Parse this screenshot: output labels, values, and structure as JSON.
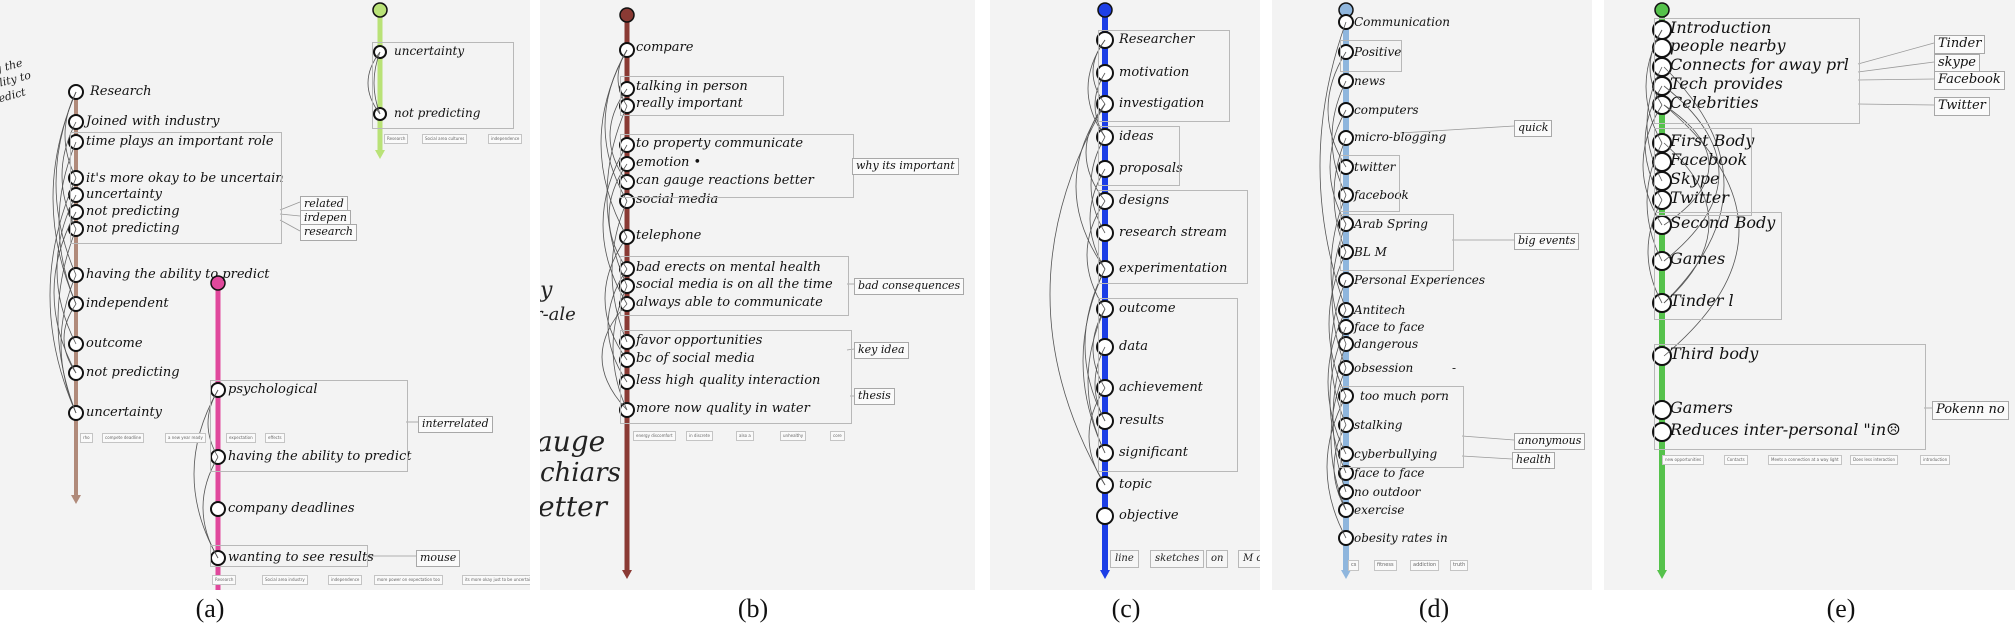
{
  "figure": {
    "captions": [
      "(a)",
      "(b)",
      "(c)",
      "(d)",
      "(e)"
    ],
    "colors": {
      "a_main": "#b08a7a",
      "a_green": "#b9e277",
      "a_pink": "#e0489c",
      "b": "#8a3a34",
      "c": "#1c3ee6",
      "d": "#8fb6dd",
      "e": "#55c24b"
    }
  },
  "panel_a": {
    "handwriting": "ring the ability to predict",
    "main": {
      "labels": [
        "Research",
        "Joined with industry",
        "time plays an important role",
        "it's more okay to be uncertain",
        "uncertainty",
        "not predicting",
        "not predicting",
        "having the ability to predict",
        "independent",
        "outcome",
        "not predicting",
        "uncertainty"
      ],
      "tags": [
        "related",
        "irdepen",
        "research"
      ],
      "chips": [
        "rho",
        "compete deadline",
        "a new year ready",
        "expectation",
        "effects"
      ]
    },
    "green": {
      "labels": [
        "uncertainty",
        "not predicting"
      ],
      "chips": [
        "Research",
        "Social area cultures",
        "independence"
      ]
    },
    "pink": {
      "labels": [
        "psychological",
        "having the ability to predict",
        "company deadlines",
        "wanting to see results"
      ],
      "tags": [
        "interrelated",
        "mouse"
      ],
      "chips": [
        "Research",
        "Social area industry",
        "independence",
        "more power on expectation too",
        "its more okay just to be uncertain"
      ]
    }
  },
  "panel_b": {
    "handwriting": [
      "y",
      "r-ale",
      "auge",
      "chiars",
      "etter"
    ],
    "labels": [
      "compare",
      "talking in person",
      "really important",
      "to property communicate",
      "emotion •",
      "can gauge reactions better",
      "social media",
      "telephone",
      "bad erects on mental health",
      "social media is on all the time",
      "always able to communicate",
      "favor opportunities",
      "bc of social media",
      "less high quality interaction",
      "more now quality in water"
    ],
    "tags": [
      "why its important",
      "bad consequences",
      "key idea",
      "thesis"
    ],
    "chips": [
      "energy discomfort",
      "in discrete",
      "also a",
      "unhealthy",
      "core"
    ]
  },
  "panel_c": {
    "labels": [
      "Researcher",
      "motivation",
      "investigation",
      "ideas",
      "proposals",
      "designs",
      "research stream",
      "experimentation",
      "outcome",
      "data",
      "achievement",
      "results",
      "significant",
      "topic",
      "objective"
    ],
    "chips": [
      "line",
      "sketches",
      "on",
      "M ou"
    ]
  },
  "panel_d": {
    "labels": [
      "Communication",
      "Positive",
      "news",
      "computers",
      "micro-blogging",
      "twitter",
      "facebook",
      "Arab Spring",
      "BL M",
      "Personal Experiences",
      "Antitech",
      "face to face",
      "dangerous",
      "obsession",
      "too much porn",
      "stalking",
      "cyberbullying",
      "face to face",
      "no outdoor",
      "exercise",
      "obesity rates in"
    ],
    "dash": "-",
    "tags": [
      "quick",
      "big events",
      "anonymous",
      "health"
    ],
    "chips": [
      "cs",
      "fitness",
      "addiction",
      "truth"
    ]
  },
  "panel_e": {
    "labels": [
      "Introduction",
      "people nearby",
      "Connects for away prl",
      "Tech provides",
      "Celebrities",
      "First Body",
      "Facebook",
      "Skype",
      "Twitter",
      "Second Body",
      "Games",
      "Tinder l",
      "Third body",
      "Gamers",
      "Reduces inter-personal \"in☹"
    ],
    "tags": [
      "Tinder",
      "skype",
      "Facebook",
      "Twitter",
      "Pokenn no"
    ],
    "chips": [
      "new opportunities",
      "Contacts",
      "Meets a connection at a way light",
      "Does less interaction",
      "introduction"
    ]
  }
}
